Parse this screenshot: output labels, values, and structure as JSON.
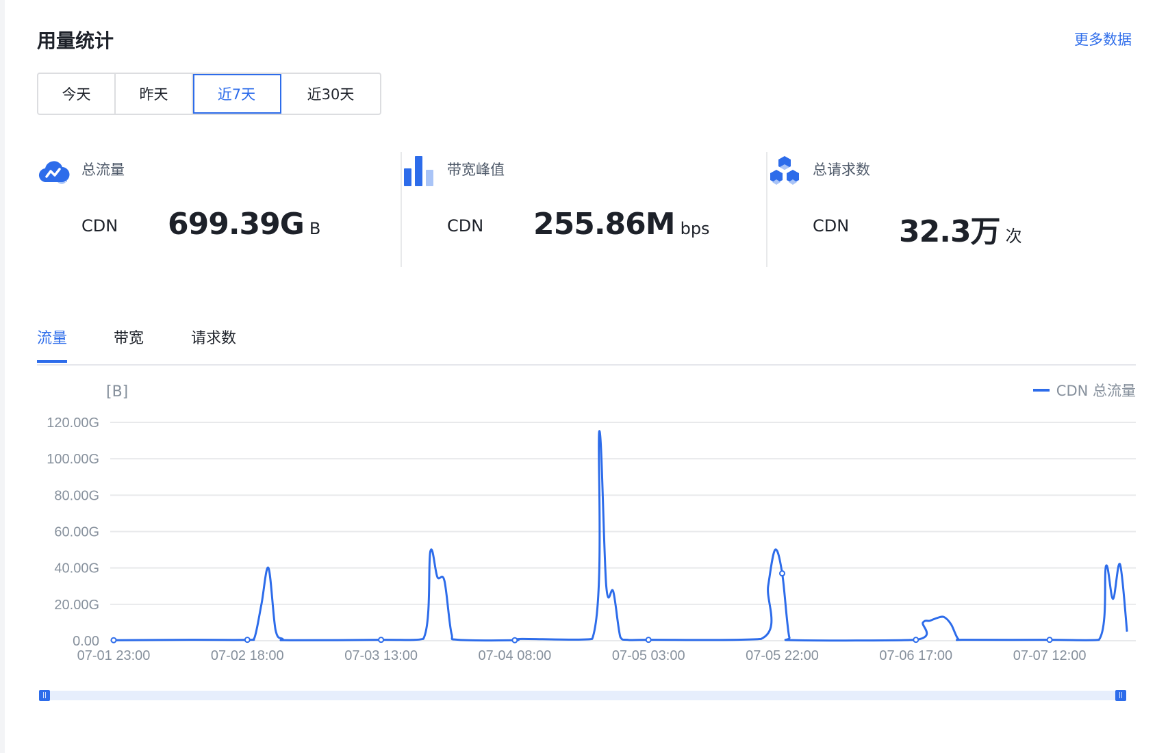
{
  "header": {
    "title": "用量统计",
    "more_link": "更多数据"
  },
  "range_buttons": [
    {
      "label": "今天",
      "active": false
    },
    {
      "label": "昨天",
      "active": false
    },
    {
      "label": "近7天",
      "active": true
    },
    {
      "label": "近30天",
      "active": false
    }
  ],
  "stats": [
    {
      "icon": "cloud-chart-icon",
      "label": "总流量",
      "source": "CDN",
      "value": "699.39G",
      "unit": "B"
    },
    {
      "icon": "bar-chart-icon",
      "label": "带宽峰值",
      "source": "CDN",
      "value": "255.86M",
      "unit": "bps"
    },
    {
      "icon": "cubes-icon",
      "label": "总请求数",
      "source": "CDN",
      "value": "32.3万",
      "unit": "次"
    }
  ],
  "tabs": [
    {
      "label": "流量",
      "active": true
    },
    {
      "label": "带宽",
      "active": false
    },
    {
      "label": "请求数",
      "active": false
    }
  ],
  "colors": {
    "accent": "#2d6cea",
    "grid": "#e8e9eb",
    "axis_text": "#86909c"
  },
  "chart_data": {
    "type": "line",
    "unit_label": "[B]",
    "legend": "CDN 总流量",
    "legend_position": "top-right",
    "grid": true,
    "ylim": [
      0,
      120
    ],
    "y_ticks": [
      "0.00",
      "20.00G",
      "40.00G",
      "60.00G",
      "80.00G",
      "100.00G",
      "120.00G"
    ],
    "x_ticks": [
      "07-01 23:00",
      "07-02 18:00",
      "07-03 13:00",
      "07-04 08:00",
      "07-05 03:00",
      "07-05 22:00",
      "07-06 17:00",
      "07-07 12:00"
    ],
    "series": [
      {
        "name": "CDN 总流量",
        "y_unit": "GB",
        "points": [
          [
            "07-01 23:00",
            0.3
          ],
          [
            "07-02 10:00",
            0.5
          ],
          [
            "07-02 18:00",
            0.5
          ],
          [
            "07-02 19:00",
            1.5
          ],
          [
            "07-02 20:00",
            20
          ],
          [
            "07-02 21:00",
            40
          ],
          [
            "07-02 22:00",
            6
          ],
          [
            "07-02 23:00",
            1
          ],
          [
            "07-03 00:00",
            0.3
          ],
          [
            "07-03 13:00",
            0.5
          ],
          [
            "07-03 19:00",
            1
          ],
          [
            "07-03 20:00",
            49
          ],
          [
            "07-03 21:00",
            35
          ],
          [
            "07-03 22:00",
            33
          ],
          [
            "07-03 23:00",
            4
          ],
          [
            "07-04 00:00",
            0.5
          ],
          [
            "07-04 08:00",
            0.3
          ],
          [
            "07-04 09:00",
            1
          ],
          [
            "07-04 19:00",
            1
          ],
          [
            "07-04 20:00",
            115
          ],
          [
            "07-04 21:00",
            30
          ],
          [
            "07-04 22:00",
            27
          ],
          [
            "07-04 23:00",
            2
          ],
          [
            "07-05 00:00",
            0.5
          ],
          [
            "07-05 03:00",
            0.5
          ],
          [
            "07-05 19:00",
            1
          ],
          [
            "07-05 20:00",
            30
          ],
          [
            "07-05 21:00",
            50
          ],
          [
            "07-05 22:00",
            37
          ],
          [
            "07-05 23:00",
            2
          ],
          [
            "07-06 00:00",
            0.3
          ],
          [
            "07-06 17:00",
            0.5
          ],
          [
            "07-06 18:00",
            10
          ],
          [
            "07-06 19:00",
            11
          ],
          [
            "07-06 20:00",
            12.5
          ],
          [
            "07-06 21:00",
            13
          ],
          [
            "07-06 22:00",
            9
          ],
          [
            "07-06 23:00",
            1
          ],
          [
            "07-07 00:00",
            0.5
          ],
          [
            "07-07 12:00",
            0.5
          ],
          [
            "07-07 19:00",
            0.5
          ],
          [
            "07-07 20:00",
            41
          ],
          [
            "07-07 21:00",
            23
          ],
          [
            "07-07 22:00",
            42
          ],
          [
            "07-07 23:00",
            5
          ]
        ]
      }
    ]
  }
}
